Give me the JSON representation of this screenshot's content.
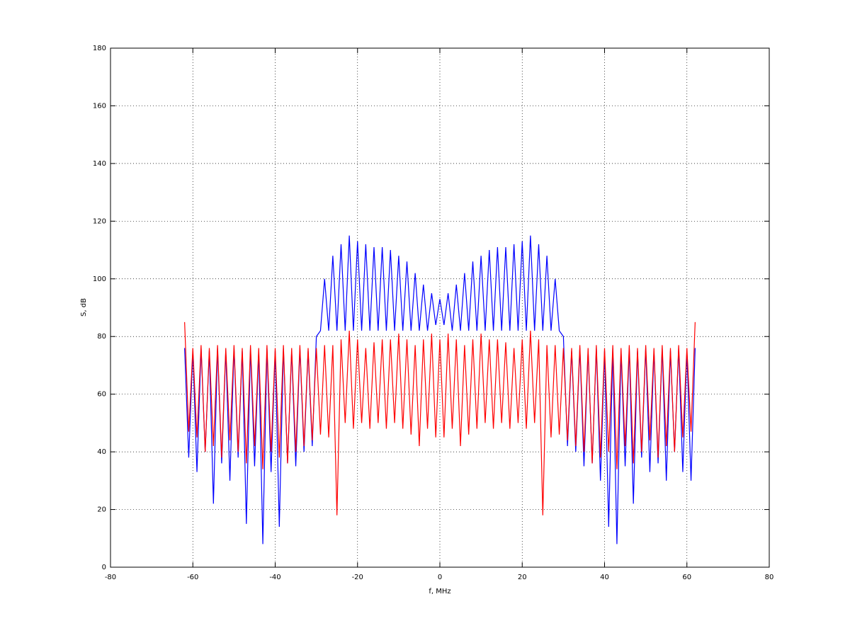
{
  "chart_data": {
    "type": "line",
    "xlabel": "f, MHz",
    "ylabel": "S, dB",
    "x": [
      -62,
      -61,
      -60,
      -59,
      -58,
      -57,
      -56,
      -55,
      -54,
      -53,
      -52,
      -51,
      -50,
      -49,
      -48,
      -47,
      -46,
      -45,
      -44,
      -43,
      -42,
      -41,
      -40,
      -39,
      -38,
      -37,
      -36,
      -35,
      -34,
      -33,
      -32,
      -31,
      -30,
      -29,
      -28,
      -27,
      -26,
      -25,
      -24,
      -23,
      -22,
      -21,
      -20,
      -19,
      -18,
      -17,
      -16,
      -15,
      -14,
      -13,
      -12,
      -11,
      -10,
      -9,
      -8,
      -7,
      -6,
      -5,
      -4,
      -3,
      -2,
      -1,
      0,
      1,
      2,
      3,
      4,
      5,
      6,
      7,
      8,
      9,
      10,
      11,
      12,
      13,
      14,
      15,
      16,
      17,
      18,
      19,
      20,
      21,
      22,
      23,
      24,
      25,
      26,
      27,
      28,
      29,
      30,
      31,
      32,
      33,
      34,
      35,
      36,
      37,
      38,
      39,
      40,
      41,
      42,
      43,
      44,
      45,
      46,
      47,
      48,
      49,
      50,
      51,
      52,
      53,
      54,
      55,
      56,
      57,
      58,
      59,
      60,
      61,
      62
    ],
    "series": [
      {
        "color": "#0000ff",
        "values": [
          76,
          38,
          75,
          33,
          76,
          40,
          75,
          22,
          76,
          36,
          75,
          30,
          76,
          38,
          75,
          15,
          76,
          35,
          75,
          8,
          76,
          33,
          75,
          14,
          76,
          36,
          75,
          35,
          76,
          40,
          75,
          42,
          80,
          82,
          100,
          82,
          108,
          82,
          112,
          82,
          115,
          82,
          113,
          82,
          112,
          82,
          111,
          82,
          111,
          82,
          110,
          82,
          108,
          82,
          106,
          82,
          102,
          82,
          98,
          82,
          95,
          84,
          93,
          84,
          95,
          82,
          98,
          82,
          102,
          82,
          106,
          82,
          108,
          82,
          110,
          82,
          111,
          82,
          111,
          82,
          112,
          82,
          113,
          82,
          115,
          82,
          112,
          82,
          108,
          82,
          100,
          82,
          80,
          42,
          75,
          40,
          76,
          35,
          75,
          36,
          76,
          30,
          75,
          14,
          76,
          8,
          75,
          35,
          76,
          22,
          75,
          38,
          76,
          33,
          75,
          36,
          76,
          30,
          75,
          40,
          76,
          33,
          75,
          30,
          76
        ]
      },
      {
        "color": "#ff0000",
        "values": [
          85,
          47,
          76,
          45,
          77,
          40,
          76,
          42,
          77,
          38,
          76,
          44,
          77,
          40,
          76,
          36,
          77,
          42,
          76,
          34,
          77,
          40,
          76,
          38,
          77,
          36,
          76,
          40,
          77,
          42,
          76,
          44,
          76,
          46,
          77,
          45,
          77,
          18,
          79,
          50,
          82,
          48,
          79,
          50,
          76,
          48,
          78,
          50,
          79,
          48,
          79,
          50,
          81,
          48,
          79,
          46,
          77,
          42,
          79,
          48,
          81,
          45,
          79,
          45,
          81,
          48,
          79,
          42,
          77,
          46,
          79,
          48,
          81,
          50,
          79,
          48,
          79,
          50,
          78,
          48,
          76,
          50,
          79,
          48,
          82,
          50,
          79,
          18,
          77,
          45,
          77,
          46,
          76,
          44,
          76,
          42,
          77,
          40,
          76,
          36,
          77,
          38,
          76,
          40,
          77,
          34,
          76,
          42,
          77,
          36,
          76,
          40,
          77,
          44,
          76,
          38,
          77,
          42,
          76,
          40,
          77,
          45,
          76,
          47,
          85
        ]
      }
    ],
    "xlim": [
      -80,
      80
    ],
    "xticks": [
      -80,
      -60,
      -40,
      -20,
      0,
      20,
      40,
      60,
      80
    ],
    "ylim": [
      0,
      180
    ],
    "yticks": [
      0,
      20,
      40,
      60,
      80,
      100,
      120,
      140,
      160,
      180
    ],
    "grid": true
  }
}
